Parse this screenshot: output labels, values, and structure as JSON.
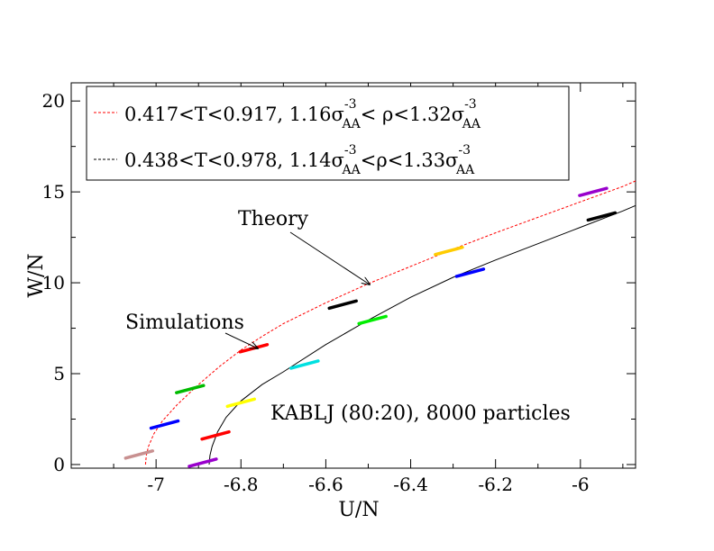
{
  "chart_data": {
    "type": "line",
    "xlabel": "U/N",
    "ylabel": "W/N",
    "xlim": [
      -7.2,
      -5.87
    ],
    "ylim": [
      -0.2,
      21
    ],
    "xticks": [
      -7,
      -6.8,
      -6.6,
      -6.4,
      -6.2,
      -6
    ],
    "xtick_labels": [
      "-7",
      "-6.8",
      "-6.6",
      "-6.4",
      "-6.2",
      "-6"
    ],
    "yticks": [
      0,
      5,
      10,
      15,
      20
    ],
    "ytick_labels": [
      "0",
      "5",
      "10",
      "15",
      "20"
    ],
    "series": [
      {
        "name": "theory-red",
        "color": "#ff0000",
        "dashed": true,
        "legend_parts": [
          "0.417<T<0.917, 1.16σ",
          "-3",
          "AA",
          "< ρ<1.32σ",
          "-3",
          "AA"
        ],
        "x": [
          -7.025,
          -7.023,
          -7.018,
          -7.005,
          -6.985,
          -6.95,
          -6.9,
          -6.85,
          -6.8,
          -6.75,
          -6.7,
          -6.6,
          -6.5,
          -6.4,
          -6.3,
          -6.2,
          -6.1,
          -6.0,
          -5.9,
          -5.87
        ],
        "y": [
          0,
          0.5,
          1.0,
          1.7,
          2.4,
          3.3,
          4.4,
          5.4,
          6.3,
          7.05,
          7.75,
          8.9,
          9.95,
          10.9,
          11.85,
          12.75,
          13.6,
          14.45,
          15.3,
          15.6
        ]
      },
      {
        "name": "theory-black",
        "color": "#000000",
        "dashed": false,
        "legend_parts": [
          "0.438<T<0.978, 1.14σ",
          "-3",
          "AA",
          "<ρ<1.33σ",
          "-3",
          "AA"
        ],
        "x": [
          -6.875,
          -6.873,
          -6.868,
          -6.855,
          -6.835,
          -6.8,
          -6.75,
          -6.7,
          -6.6,
          -6.5,
          -6.4,
          -6.3,
          -6.2,
          -6.1,
          -6.0,
          -5.9,
          -5.87
        ],
        "y": [
          0,
          0.5,
          1.0,
          1.8,
          2.6,
          3.5,
          4.4,
          5.1,
          6.6,
          7.95,
          9.2,
          10.3,
          11.25,
          12.15,
          13.05,
          13.95,
          14.25
        ]
      }
    ],
    "simulation_points": [
      {
        "x": -7.04,
        "y": 0.55,
        "color": "#c89090"
      },
      {
        "x": -6.98,
        "y": 2.2,
        "color": "#0000ff"
      },
      {
        "x": -6.92,
        "y": 4.15,
        "color": "#00bb00"
      },
      {
        "x": -6.77,
        "y": 6.4,
        "color": "#ff0000"
      },
      {
        "x": -6.56,
        "y": 8.8,
        "color": "#000000"
      },
      {
        "x": -6.31,
        "y": 11.75,
        "color": "#ffcc00"
      },
      {
        "x": -5.97,
        "y": 15.0,
        "color": "#9900cc"
      },
      {
        "x": -6.89,
        "y": 0.1,
        "color": "#9900cc"
      },
      {
        "x": -6.86,
        "y": 1.6,
        "color": "#ff0000"
      },
      {
        "x": -6.8,
        "y": 3.4,
        "color": "#ffff00"
      },
      {
        "x": -6.65,
        "y": 5.5,
        "color": "#00e0e0"
      },
      {
        "x": -6.49,
        "y": 7.95,
        "color": "#00ee00"
      },
      {
        "x": -6.26,
        "y": 10.55,
        "color": "#0000ff"
      },
      {
        "x": -5.95,
        "y": 13.65,
        "color": "#000000"
      }
    ],
    "annotations": [
      {
        "text": "Theory",
        "arrow_to": [
          -6.53,
          9.9
        ]
      },
      {
        "text": "Simulations",
        "arrow_to": [
          -6.77,
          6.3
        ]
      },
      {
        "text": "KABLJ (80:20), 8000 particles"
      }
    ]
  }
}
